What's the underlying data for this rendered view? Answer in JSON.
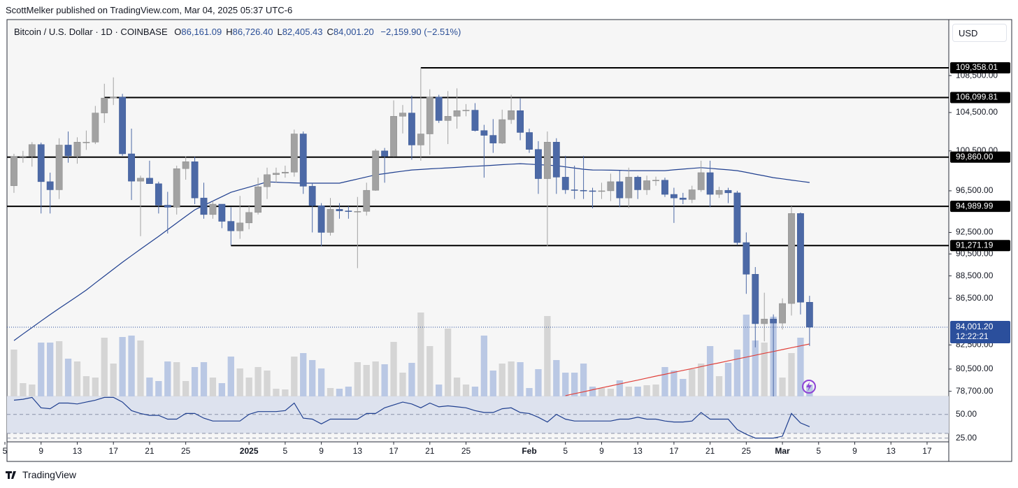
{
  "header": "ScottMelker published on TradingView.com, Mar 04, 2025 05:37 UTC-6",
  "footer": "TradingView",
  "chart_data": {
    "type": "candlestick",
    "symbol": "Bitcoin / U.S. Dollar · 1D · COINBASE",
    "legend": [
      {
        "key": "O",
        "value": "86,161.09"
      },
      {
        "key": "H",
        "value": "86,726.40"
      },
      {
        "key": "L",
        "value": "82,405.43"
      },
      {
        "key": "C",
        "value": "84,001.20"
      }
    ],
    "change": "−2,159.90 (−2.51%)",
    "currency": "USD",
    "log_scale": true,
    "ylim": [
      78290,
      114860
    ],
    "yticks": [
      {
        "value": 108500,
        "label": "108,500.00"
      },
      {
        "value": 104500,
        "label": "104,500.00"
      },
      {
        "value": 100500,
        "label": "100,500.00"
      },
      {
        "value": 96500,
        "label": "96,500.00"
      },
      {
        "value": 92500,
        "label": "92,500.00"
      },
      {
        "value": 90500,
        "label": "90,500.00"
      },
      {
        "value": 88500,
        "label": "88,500.00"
      },
      {
        "value": 86500,
        "label": "86,500.00"
      },
      {
        "value": 82500,
        "label": "82,500.00"
      },
      {
        "value": 80500,
        "label": "80,500.00"
      },
      {
        "value": 78700,
        "label": "78,700.00"
      }
    ],
    "xlim": [
      -0.77,
      103.4
    ],
    "xticks": [
      {
        "value": -1,
        "label": "5"
      },
      {
        "value": 3,
        "label": "9"
      },
      {
        "value": 7,
        "label": "13"
      },
      {
        "value": 11,
        "label": "17"
      },
      {
        "value": 15,
        "label": "21"
      },
      {
        "value": 19,
        "label": "25"
      },
      {
        "value": 26,
        "label": "2025"
      },
      {
        "value": 30,
        "label": "5"
      },
      {
        "value": 34,
        "label": "9"
      },
      {
        "value": 38,
        "label": "13"
      },
      {
        "value": 42,
        "label": "17"
      },
      {
        "value": 46,
        "label": "21"
      },
      {
        "value": 50,
        "label": "25"
      },
      {
        "value": 57,
        "label": "Feb"
      },
      {
        "value": 61,
        "label": "5"
      },
      {
        "value": 65,
        "label": "9"
      },
      {
        "value": 69,
        "label": "13"
      },
      {
        "value": 73,
        "label": "17"
      },
      {
        "value": 77,
        "label": "21"
      },
      {
        "value": 81,
        "label": "25"
      },
      {
        "value": 85,
        "label": "Mar"
      },
      {
        "value": 89,
        "label": "5"
      },
      {
        "value": 93,
        "label": "9"
      },
      {
        "value": 97,
        "label": "13"
      },
      {
        "value": 101,
        "label": "17"
      }
    ],
    "open": [
      97000,
      99900,
      99950,
      101150,
      97400,
      96600,
      101100,
      100000,
      101400,
      101400,
      104450,
      106050,
      106150,
      100200,
      97450,
      97750,
      97200,
      95100,
      94900,
      98700,
      99400,
      95800,
      94200,
      95200,
      93550,
      92650,
      93400,
      94400,
      96900,
      98100,
      98250,
      98350,
      102250,
      96950,
      95050,
      92500,
      94700,
      94550,
      94500,
      94500,
      96550,
      100500,
      99950,
      104100,
      104450,
      101100,
      102250,
      106150,
      103650,
      104100,
      104700,
      104750,
      102600,
      102100,
      101300,
      103750,
      104700,
      102400,
      100650,
      97700,
      101400,
      97850,
      96600,
      96550,
      96500,
      96450,
      96500,
      97400,
      95800,
      97850,
      96600,
      97500,
      97550,
      96150,
      95800,
      95650,
      96600,
      98300,
      96150,
      96550,
      96300,
      91550,
      88650,
      84300,
      84700,
      84350,
      86050,
      94300,
      86161.09
    ],
    "high": [
      100200,
      100500,
      101400,
      101350,
      98300,
      101800,
      102500,
      101900,
      102600,
      105200,
      107600,
      108300,
      106500,
      102800,
      98000,
      99500,
      97400,
      96400,
      99000,
      99950,
      99900,
      97300,
      95500,
      95200,
      94900,
      96000,
      95000,
      97800,
      98800,
      98800,
      99000,
      102700,
      102500,
      97300,
      95300,
      95800,
      95300,
      95000,
      95900,
      97300,
      100700,
      100800,
      105800,
      105300,
      106300,
      109358.01,
      107000,
      106400,
      106800,
      107100,
      105400,
      105500,
      103200,
      103800,
      104800,
      106400,
      106000,
      102800,
      101500,
      102500,
      101800,
      100000,
      99000,
      100000,
      96800,
      97300,
      98200,
      98500,
      98800,
      98000,
      98000,
      97900,
      97800,
      96800,
      96300,
      97000,
      99500,
      99500,
      96900,
      96800,
      96500,
      92500,
      89300,
      87000,
      85100,
      86500,
      95000,
      94400,
      86726.4
    ],
    "low": [
      96300,
      99300,
      98900,
      94300,
      94300,
      95700,
      99300,
      99200,
      100600,
      101200,
      103400,
      105300,
      100000,
      95600,
      92150,
      97200,
      94300,
      92400,
      94200,
      97600,
      95200,
      93800,
      93800,
      92900,
      91300,
      91900,
      92800,
      94200,
      95700,
      97300,
      97800,
      97900,
      96200,
      92500,
      91200,
      92200,
      93800,
      93800,
      89200,
      94100,
      96500,
      97300,
      99900,
      102300,
      99600,
      99500,
      100100,
      103400,
      101200,
      102800,
      104100,
      102500,
      97800,
      100300,
      101200,
      103300,
      101600,
      100300,
      96200,
      91200,
      96200,
      96200,
      95700,
      95700,
      94800,
      95700,
      95500,
      94900,
      94800,
      95700,
      96100,
      97000,
      95900,
      93400,
      95200,
      95300,
      96400,
      94900,
      95800,
      95300,
      91300,
      86900,
      82300,
      82800,
      78200,
      83800,
      85000,
      85100,
      82405.43
    ],
    "close": [
      99900,
      99950,
      101150,
      97400,
      96600,
      101100,
      100000,
      101400,
      101400,
      104450,
      106050,
      106150,
      100200,
      97450,
      97750,
      97200,
      95100,
      94900,
      98700,
      99400,
      95800,
      94200,
      95200,
      93550,
      92650,
      93400,
      94400,
      96900,
      98100,
      98250,
      98350,
      102250,
      96950,
      95050,
      92500,
      94700,
      94550,
      94500,
      94500,
      96550,
      100500,
      99950,
      104100,
      104450,
      101100,
      102250,
      106150,
      103650,
      104100,
      104700,
      104750,
      102600,
      102100,
      101300,
      103750,
      104700,
      102400,
      100650,
      97700,
      101400,
      97850,
      96600,
      96550,
      96500,
      96450,
      96500,
      97400,
      95800,
      97850,
      96600,
      97500,
      97550,
      96150,
      95800,
      95650,
      96600,
      98300,
      96150,
      96550,
      96300,
      91550,
      88650,
      84300,
      84700,
      84350,
      86050,
      94300,
      86161.09,
      84001.2
    ],
    "up_color": "#a2a2a2",
    "down_color": "#4c69a6",
    "volume": {
      "values": [
        67,
        19,
        17,
        77,
        77,
        79,
        54,
        50,
        29,
        27,
        84,
        47,
        85,
        87,
        80,
        27,
        22,
        50,
        49,
        22,
        42,
        49,
        27,
        19,
        57,
        40,
        27,
        42,
        37,
        11,
        10,
        57,
        62,
        52,
        40,
        12,
        11,
        14,
        49,
        45,
        50,
        46,
        78,
        34,
        48,
        120,
        72,
        17,
        97,
        27,
        17,
        14,
        87,
        37,
        47,
        50,
        49,
        12,
        39,
        115,
        52,
        34,
        34,
        47,
        14,
        12,
        11,
        23,
        14,
        14,
        16,
        17,
        42,
        37,
        25,
        39,
        47,
        72,
        29,
        48,
        67,
        117,
        80,
        77,
        114,
        27,
        62,
        84,
        17
      ],
      "up_color": "#d5d5d5",
      "down_color": "#bac8e4"
    },
    "ma": [
      {
        "color": "#1f3f8f",
        "values": [
          82870,
          83420,
          83970,
          84530,
          85080,
          85620,
          86150,
          86690,
          87230,
          87860,
          88480,
          89110,
          89740,
          90340,
          90940,
          91530,
          92130,
          92760,
          93390,
          94020,
          94650,
          95080,
          95500,
          95930,
          96350,
          96610,
          96860,
          97120,
          97380,
          97350,
          97310,
          97280,
          97250,
          97250,
          97250,
          97250,
          97250,
          97460,
          97660,
          97870,
          98080,
          98200,
          98330,
          98450,
          98570,
          98620,
          98680,
          98730,
          98780,
          98830,
          98890,
          98940,
          98990,
          99040,
          99100,
          99150,
          99200,
          99150,
          99100,
          99050,
          99000,
          98880,
          98760,
          98640,
          98570,
          98560,
          98550,
          98530,
          98500,
          98500,
          98500,
          98500,
          98500,
          98580,
          98650,
          98730,
          98800,
          98730,
          98650,
          98580,
          98500,
          98330,
          98150,
          97980,
          97800,
          97680,
          97560,
          97440,
          97320
        ]
      },
      {
        "color": "#e0403a",
        "values": [
          null,
          null,
          null,
          null,
          null,
          null,
          null,
          null,
          null,
          null,
          null,
          null,
          null,
          null,
          null,
          null,
          null,
          null,
          null,
          null,
          null,
          null,
          null,
          null,
          null,
          null,
          null,
          null,
          null,
          null,
          null,
          null,
          null,
          null,
          null,
          null,
          null,
          null,
          null,
          null,
          null,
          null,
          null,
          null,
          null,
          null,
          null,
          null,
          null,
          null,
          null,
          null,
          null,
          null,
          null,
          null,
          null,
          null,
          null,
          null,
          null,
          78350,
          78510,
          78660,
          78820,
          78980,
          79130,
          79290,
          79450,
          79600,
          79760,
          79920,
          80070,
          80230,
          80390,
          80540,
          80700,
          80860,
          81010,
          81170,
          81330,
          81480,
          81640,
          81800,
          81950,
          82110,
          82270,
          82420,
          82580
        ]
      }
    ],
    "levels": [
      {
        "value": 109358.01,
        "label": "109,358.01",
        "from": 45
      },
      {
        "value": 106099.81,
        "label": "106,099.81",
        "from": 10
      },
      {
        "value": 99860,
        "label": "99,860.00"
      },
      {
        "value": 94989.99,
        "label": "94,989.99"
      },
      {
        "value": 91271.19,
        "label": "91,271.19",
        "from": 24
      }
    ],
    "last_price": {
      "value": 84001.2,
      "label": "84,001.20",
      "countdown": "12:22:21",
      "color": "#2b4f9c"
    },
    "rsi": {
      "color": "#1f3f8f",
      "ylim": [
        21,
        69
      ],
      "band": [
        30,
        70
      ],
      "yticks": [
        {
          "value": 50,
          "label": "50.00"
        },
        {
          "value": 25,
          "label": "25.00"
        }
      ],
      "values": [
        65,
        66,
        68,
        57,
        56,
        62,
        62,
        61,
        63,
        65,
        68,
        68,
        63,
        54,
        51,
        49,
        49,
        45,
        45,
        51,
        51,
        46,
        43,
        43,
        43,
        43,
        50,
        53,
        53,
        53,
        54,
        62,
        46,
        45,
        40,
        45,
        45,
        45,
        45,
        51,
        51,
        57,
        60,
        63,
        61,
        57,
        62,
        58,
        59,
        58,
        57,
        54,
        52,
        52,
        56,
        57,
        52,
        51,
        47,
        42,
        50,
        45,
        43,
        43,
        43,
        43,
        43,
        45,
        45,
        47,
        45,
        45,
        43,
        42,
        42,
        43,
        52,
        45,
        45,
        45,
        34,
        29,
        25,
        25,
        25,
        27,
        51,
        41,
        37
      ]
    }
  }
}
